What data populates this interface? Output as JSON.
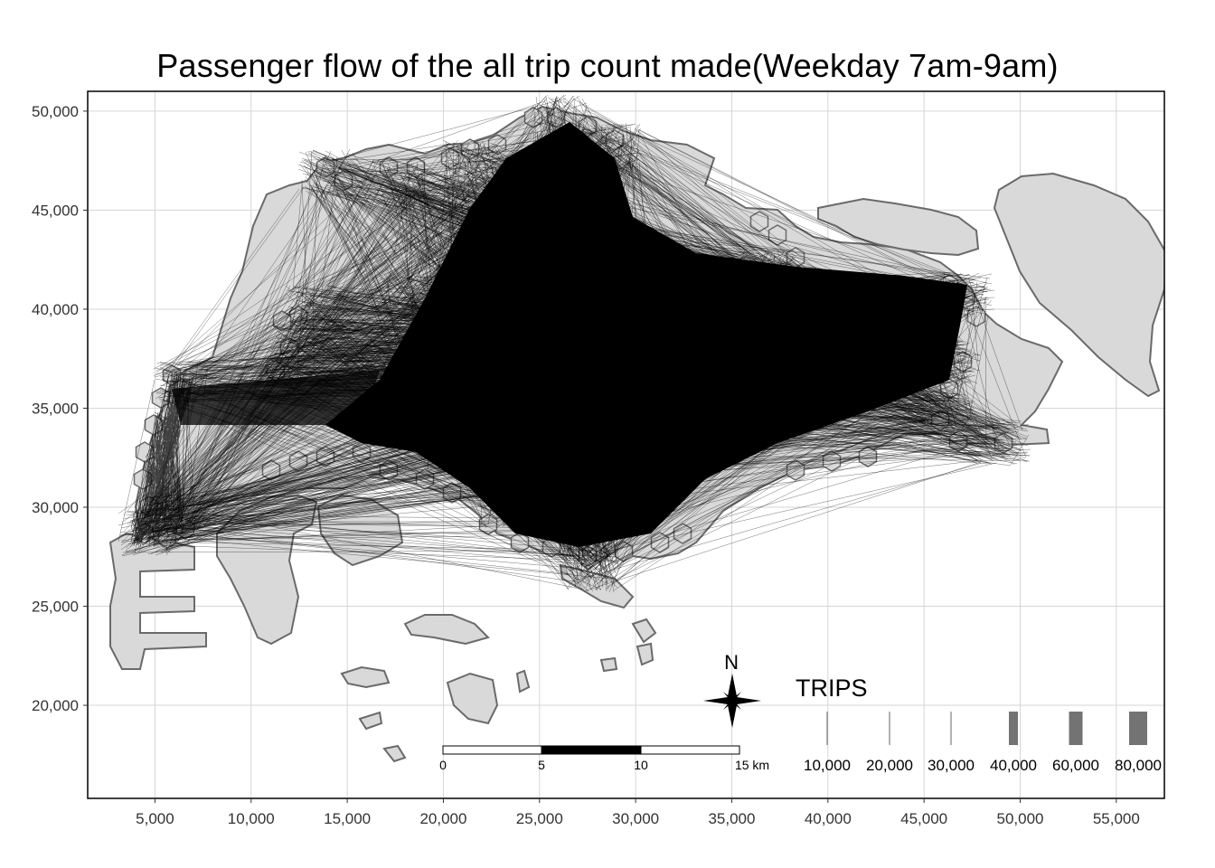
{
  "title": "Passenger flow of the all trip count made(Weekday 7am-9am)",
  "chart_data": {
    "type": "map",
    "title": "Passenger flow of the all trip count made(Weekday 7am-9am)",
    "x_ticks": [
      5000,
      10000,
      15000,
      20000,
      25000,
      30000,
      35000,
      40000,
      45000,
      50000,
      55000
    ],
    "x_tick_labels": [
      "5,000",
      "10,000",
      "15,000",
      "20,000",
      "25,000",
      "30,000",
      "35,000",
      "40,000",
      "45,000",
      "50,000",
      "55,000"
    ],
    "y_ticks": [
      20000,
      25000,
      30000,
      35000,
      40000,
      45000,
      50000
    ],
    "y_tick_labels": [
      "20,000",
      "25,000",
      "30,000",
      "35,000",
      "40,000",
      "45,000",
      "50,000"
    ],
    "xlim": [
      1500,
      57500
    ],
    "ylim": [
      15300,
      51000
    ],
    "grid": true,
    "legend": {
      "title": "TRIPS",
      "placement": "bottom-right",
      "entries": [
        {
          "label": "10,000",
          "value": 10000
        },
        {
          "label": "20,000",
          "value": 20000
        },
        {
          "label": "30,000",
          "value": 30000
        },
        {
          "label": "40,000",
          "value": 40000
        },
        {
          "label": "60,000",
          "value": 60000
        },
        {
          "label": "80,000",
          "value": 80000
        }
      ]
    },
    "scale_bar": {
      "unit_label": "km",
      "labels": [
        "0",
        "5",
        "10",
        "15 km"
      ],
      "segments_km": [
        0,
        5,
        10,
        15
      ]
    },
    "north_arrow": {
      "label": "N"
    },
    "colors": {
      "land_fill": "#d9d9d9",
      "land_stroke": "#6a6a6a",
      "flow_lines": "#000000",
      "grid": "#d6d6d6",
      "panel_border": "#000000"
    }
  }
}
